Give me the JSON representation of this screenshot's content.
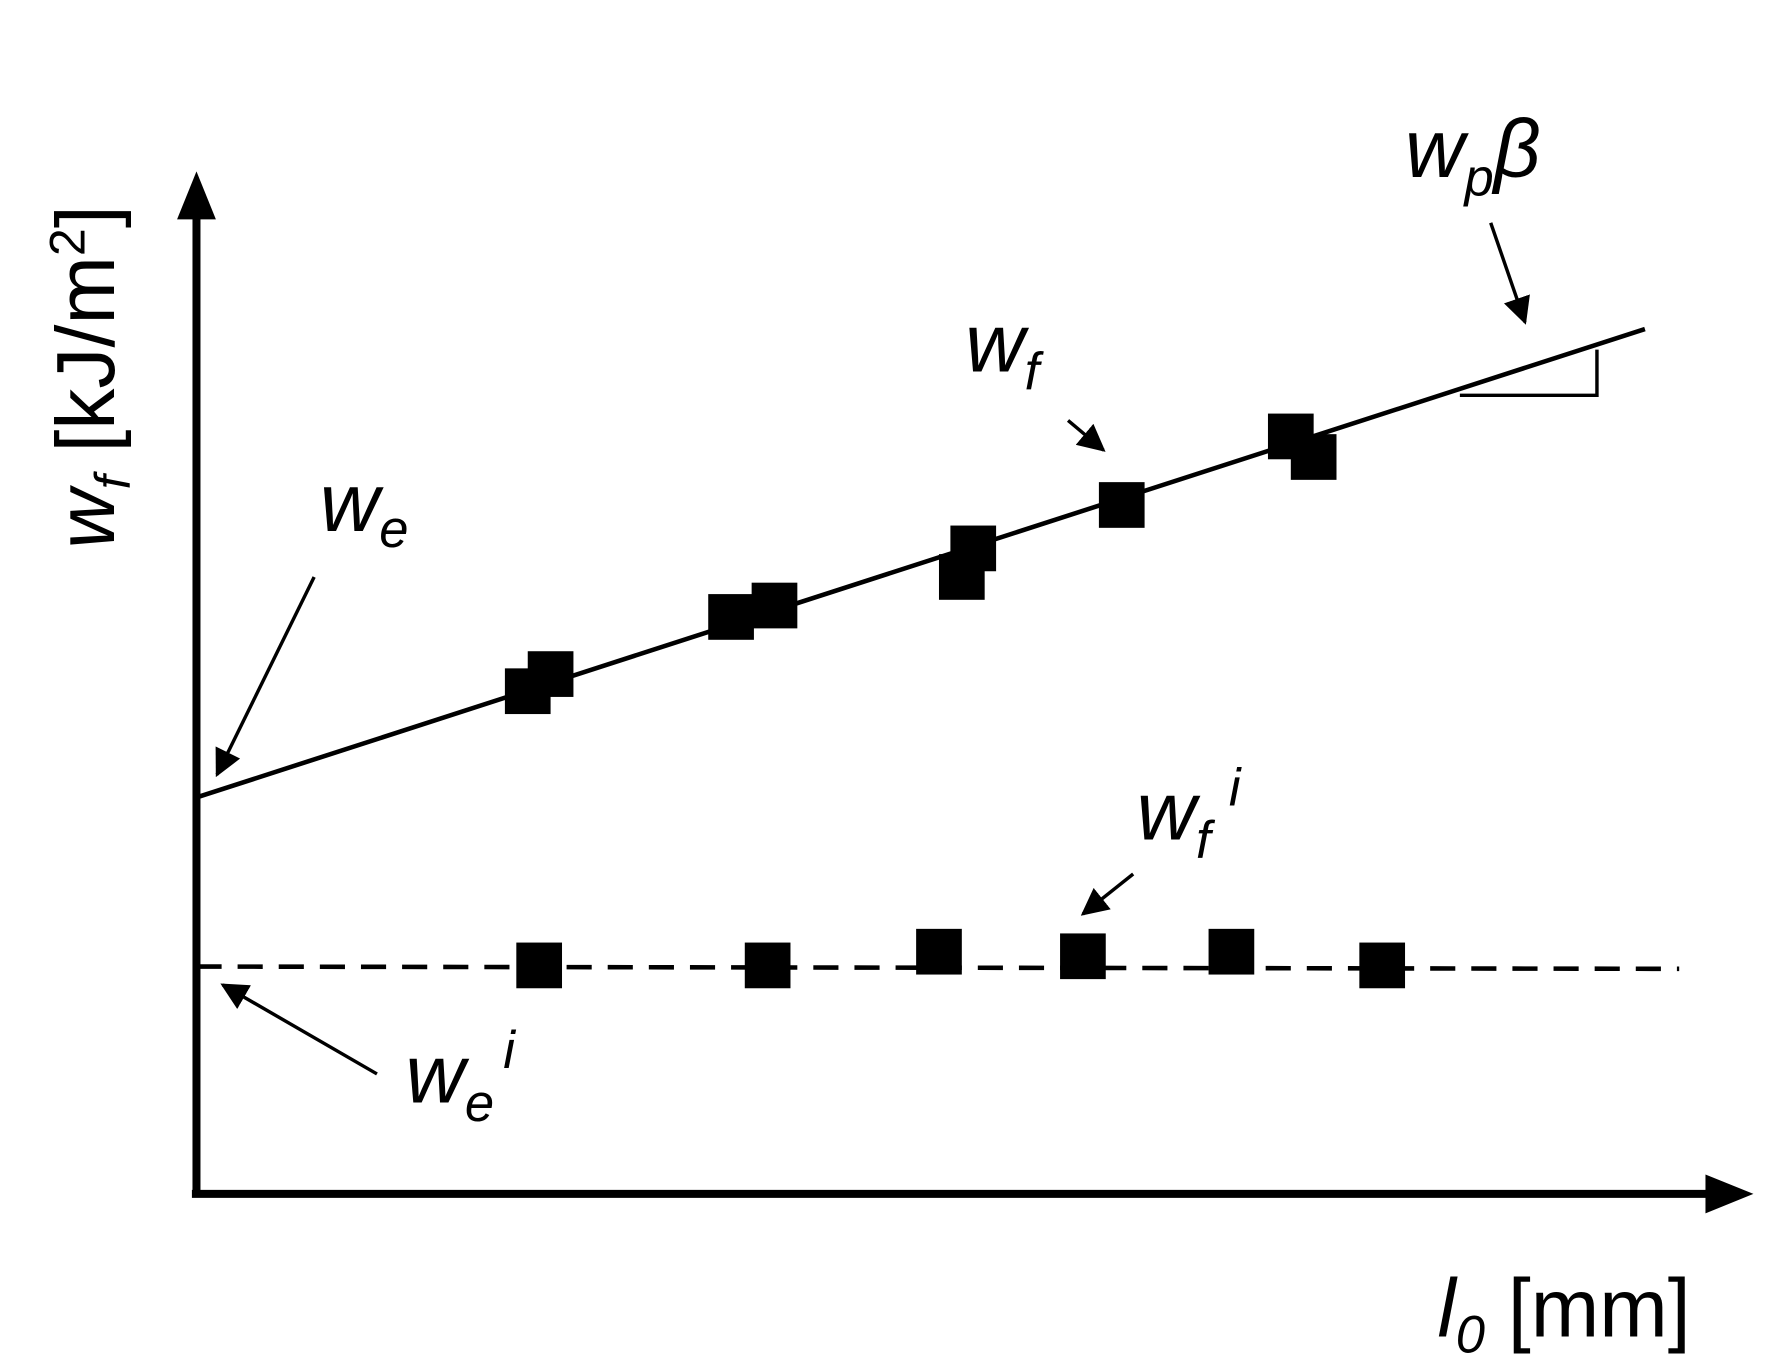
{
  "axes": {
    "y_label": {
      "base": "w",
      "sub": "f",
      "tail": " [kJ/m",
      "sup": "2",
      "end": "]"
    },
    "x_label": {
      "base": "l",
      "sub": "0",
      "tail": " [mm]"
    }
  },
  "annotations": [
    {
      "base": "w",
      "sub": "e"
    },
    {
      "base": "w",
      "sub": "f"
    },
    {
      "base": "w",
      "sub": "p",
      "tail": "β"
    },
    {
      "base": "w",
      "sub": "f",
      "sup": "i"
    },
    {
      "base": "w",
      "sub": "e",
      "sup": "i"
    }
  ]
}
